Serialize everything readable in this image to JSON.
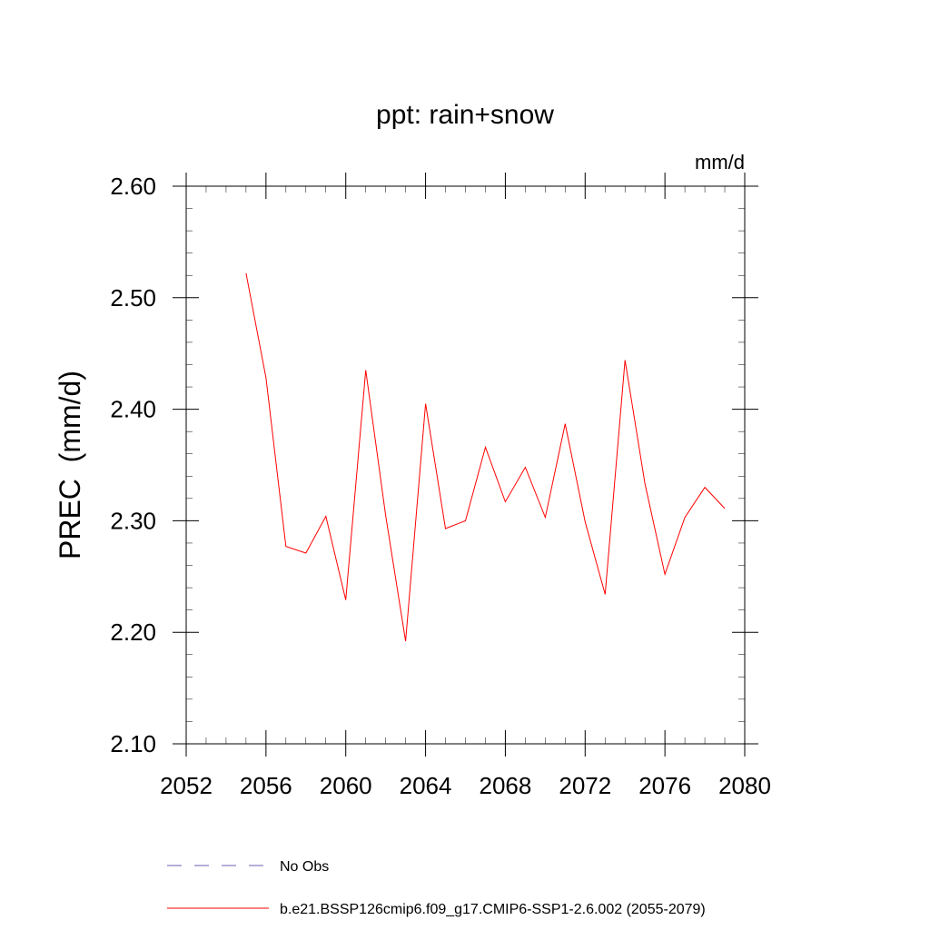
{
  "chart_data": {
    "type": "line",
    "title": "ppt: rain+snow",
    "units": "mm/d",
    "xlabel": "",
    "ylabel": "PREC  (mm/d)",
    "xlim": [
      2052,
      2080
    ],
    "ylim": [
      2.1,
      2.6
    ],
    "x_ticks": [
      2052,
      2056,
      2060,
      2064,
      2068,
      2072,
      2076,
      2080
    ],
    "x_tick_labels": [
      "2052",
      "2056",
      "2060",
      "2064",
      "2068",
      "2072",
      "2076",
      "2080"
    ],
    "y_ticks": [
      2.1,
      2.2,
      2.3,
      2.4,
      2.5,
      2.6
    ],
    "y_tick_labels": [
      "2.10",
      "2.20",
      "2.30",
      "2.40",
      "2.50",
      "2.60"
    ],
    "grid": false,
    "legend_position": "bottom",
    "series": [
      {
        "name": "b.e21.BSSP126cmip6.f09_g17.CMIP6-SSP1-2.6.002 (2055-2079)",
        "color": "#ff0000",
        "dash": "solid",
        "x": [
          2055,
          2056,
          2057,
          2058,
          2059,
          2060,
          2061,
          2062,
          2063,
          2064,
          2065,
          2066,
          2067,
          2068,
          2069,
          2070,
          2071,
          2072,
          2073,
          2074,
          2075,
          2076,
          2077,
          2078,
          2079
        ],
        "y": [
          2.522,
          2.428,
          2.277,
          2.271,
          2.304,
          2.229,
          2.435,
          2.305,
          2.192,
          2.405,
          2.293,
          2.3,
          2.366,
          2.317,
          2.348,
          2.303,
          2.387,
          2.299,
          2.234,
          2.444,
          2.333,
          2.252,
          2.303,
          2.33,
          2.311
        ]
      }
    ],
    "legend": [
      {
        "label": "No Obs",
        "color": "#6b5fb5",
        "dash": "dashed"
      },
      {
        "label": "b.e21.BSSP126cmip6.f09_g17.CMIP6-SSP1-2.6.002 (2055-2079)",
        "color": "#ff0000",
        "dash": "solid"
      }
    ]
  }
}
